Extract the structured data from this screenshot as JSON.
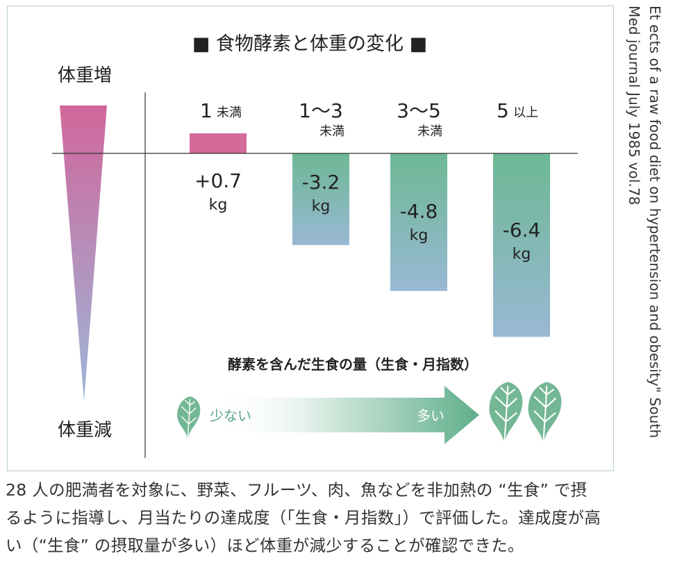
{
  "chart_data": {
    "type": "bar",
    "title": "■ 食物酵素と体重の変化 ■",
    "axis_top_label": "体重増",
    "axis_bottom_label": "体重減",
    "ylim": [
      -8,
      1.5
    ],
    "series": [
      {
        "values": [
          0.7,
          -3.2,
          -4.8,
          -6.4
        ]
      }
    ],
    "categories": [
      {
        "main": "1",
        "sub": "未満",
        "value_label": "+0.7",
        "unit": "kg"
      },
      {
        "main": "1～3",
        "sub": "未満",
        "value_label": "-3.2",
        "unit": "kg"
      },
      {
        "main": "3～5",
        "sub": "未満",
        "value_label": "-4.8",
        "unit": "kg"
      },
      {
        "main": "5",
        "sub": "以上",
        "value_label": "-6.4",
        "unit": "kg"
      }
    ],
    "legend": {
      "title": "酵素を含んだ生食の量（生食・月指数）",
      "low_label": "少ない",
      "high_label": "多い"
    }
  },
  "colors": {
    "positive_bar": "#d46a9a",
    "negative_bar_top": "#6db894",
    "negative_bar_bottom": "#99b8d4",
    "wedge_top": "#d0679b",
    "wedge_bottom": "#9db6d9",
    "leaf": "#74b795"
  },
  "side_note": {
    "line1": "Et ects of a raw food diet on hypertension and obesity\" South",
    "line2": "Med journal July 1985  vol.78"
  },
  "caption": {
    "line1": "28 人の肥満者を対象に、野菜、フルーツ、肉、魚などを非加熱の “生食” で摂",
    "line2": "るように指導し、月当たりの達成度（「生食・月指数」）で評価した。達成度が高",
    "line3": "い（“生食” の摂取量が多い）ほど体重が減少することが確認できた。"
  }
}
